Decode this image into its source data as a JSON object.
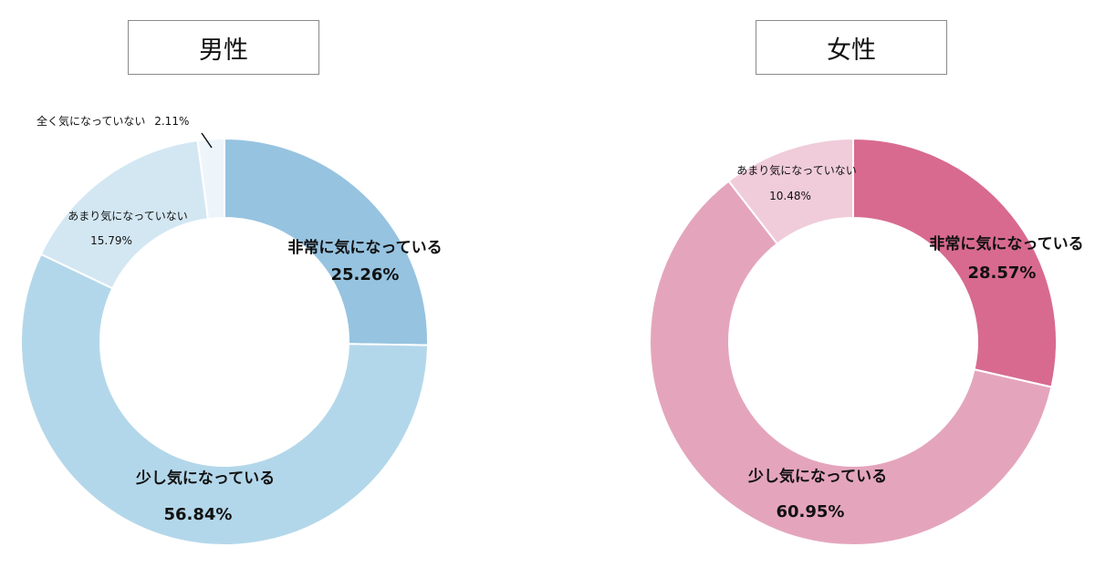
{
  "chart_data": [
    {
      "type": "pie",
      "title": "男性",
      "colors": [
        "#96c3e0",
        "#b3d7ea",
        "#d3e7f3",
        "#eef5fa"
      ],
      "slices": [
        {
          "label": "非常に気になっている",
          "value": 25.26,
          "value_label": "25.26%"
        },
        {
          "label": "少し気になっている",
          "value": 56.84,
          "value_label": "56.84%"
        },
        {
          "label": "あまり気になっていない",
          "value": 15.79,
          "value_label": "15.79%"
        },
        {
          "label": "全く気になっていない",
          "value": 2.11,
          "value_label": "2.11%"
        }
      ]
    },
    {
      "type": "pie",
      "title": "女性",
      "colors": [
        "#d86a8f",
        "#e4a5bc",
        "#f0ccda"
      ],
      "slices": [
        {
          "label": "非常に気になっている",
          "value": 28.57,
          "value_label": "28.57%"
        },
        {
          "label": "少し気になっている",
          "value": 60.95,
          "value_label": "60.95%"
        },
        {
          "label": "あまり気になっていない",
          "value": 10.48,
          "value_label": "10.48%"
        }
      ]
    }
  ]
}
